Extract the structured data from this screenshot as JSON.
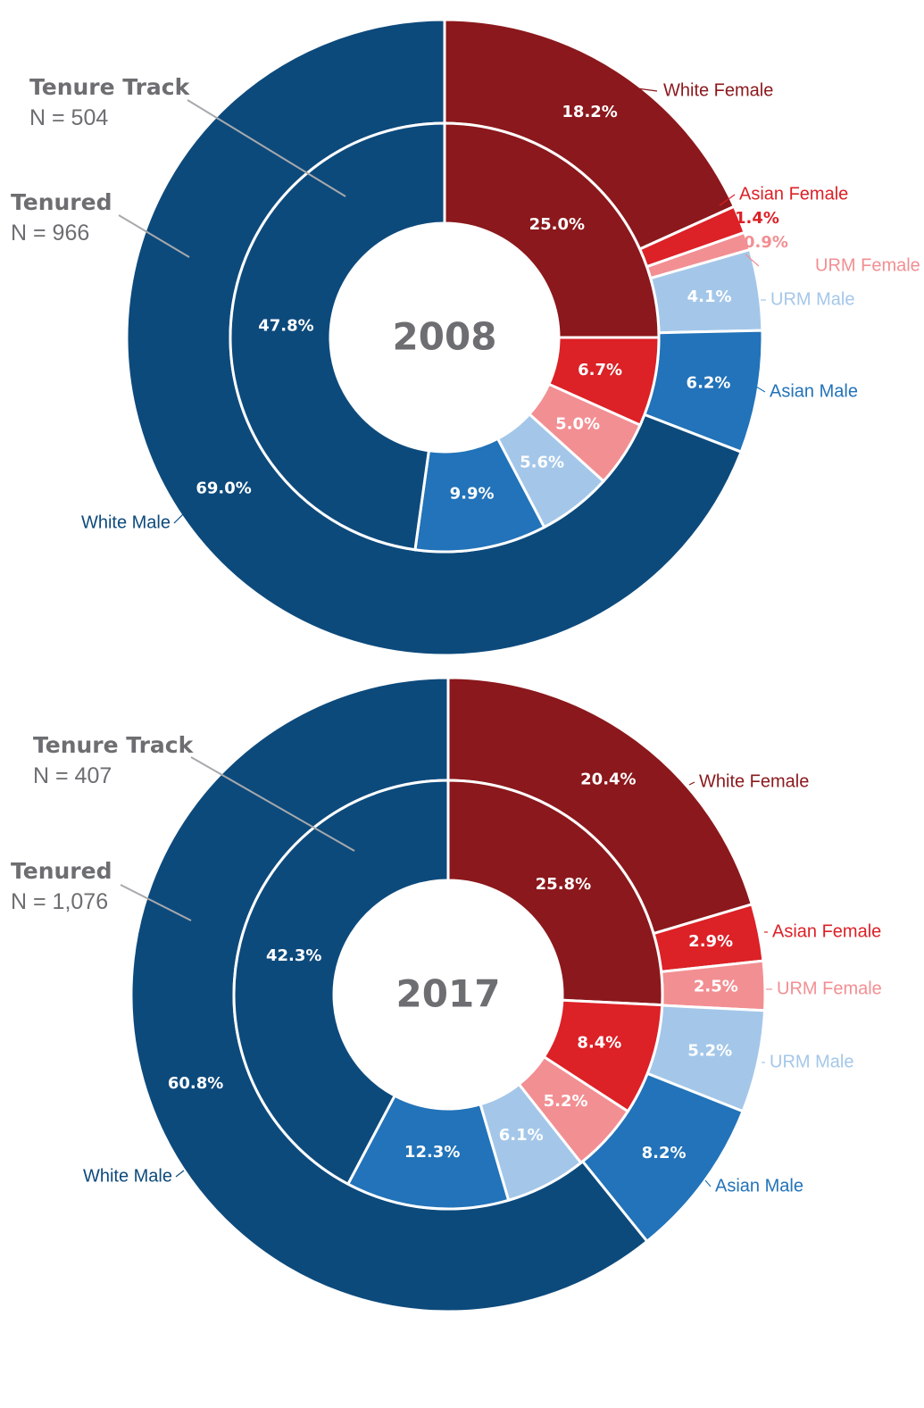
{
  "colors": {
    "white_female": "#8b181c",
    "asian_female": "#dc2127",
    "urm_female": "#f28f93",
    "urm_male": "#a4c7e9",
    "asian_male": "#2273b9",
    "white_male": "#0d4a7c",
    "heading_gray": "#6d6e71"
  },
  "chart_data": [
    {
      "type": "donut",
      "year_label": "2008",
      "outer_ring": {
        "title": "Tenured",
        "n_label": "N = 966",
        "series": [
          {
            "name": "White Female",
            "value": 18.2,
            "label": "18.2%"
          },
          {
            "name": "Asian Female",
            "value": 1.4,
            "label": "1.4%"
          },
          {
            "name": "URM Female",
            "value": 0.9,
            "label": "0.9%"
          },
          {
            "name": "URM Male",
            "value": 4.1,
            "label": "4.1%"
          },
          {
            "name": "Asian Male",
            "value": 6.2,
            "label": "6.2%"
          },
          {
            "name": "White Male",
            "value": 69.0,
            "label": "69.0%"
          }
        ]
      },
      "inner_ring": {
        "title": "Tenure Track",
        "n_label": "N = 504",
        "series": [
          {
            "name": "White Female",
            "value": 25.0,
            "label": "25.0%"
          },
          {
            "name": "Asian Female",
            "value": 6.7,
            "label": "6.7%"
          },
          {
            "name": "URM Female",
            "value": 5.0,
            "label": "5.0%"
          },
          {
            "name": "URM Male",
            "value": 5.6,
            "label": "5.6%"
          },
          {
            "name": "Asian Male",
            "value": 9.9,
            "label": "9.9%"
          },
          {
            "name": "White Male",
            "value": 47.8,
            "label": "47.8%"
          }
        ]
      }
    },
    {
      "type": "donut",
      "year_label": "2017",
      "outer_ring": {
        "title": "Tenured",
        "n_label": "N = 1,076",
        "series": [
          {
            "name": "White Female",
            "value": 20.4,
            "label": "20.4%"
          },
          {
            "name": "Asian Female",
            "value": 2.9,
            "label": "2.9%"
          },
          {
            "name": "URM Female",
            "value": 2.5,
            "label": "2.5%"
          },
          {
            "name": "URM Male",
            "value": 5.2,
            "label": "5.2%"
          },
          {
            "name": "Asian Male",
            "value": 8.2,
            "label": "8.2%"
          },
          {
            "name": "White Male",
            "value": 60.8,
            "label": "60.8%"
          }
        ]
      },
      "inner_ring": {
        "title": "Tenure Track",
        "n_label": "N = 407",
        "series": [
          {
            "name": "White Female",
            "value": 25.8,
            "label": "25.8%"
          },
          {
            "name": "Asian Female",
            "value": 8.4,
            "label": "8.4%"
          },
          {
            "name": "URM Female",
            "value": 5.2,
            "label": "5.2%"
          },
          {
            "name": "URM Male",
            "value": 6.1,
            "label": "6.1%"
          },
          {
            "name": "Asian Male",
            "value": 12.3,
            "label": "12.3%"
          },
          {
            "name": "White Male",
            "value": 42.3,
            "label": "42.3%"
          }
        ]
      }
    }
  ]
}
